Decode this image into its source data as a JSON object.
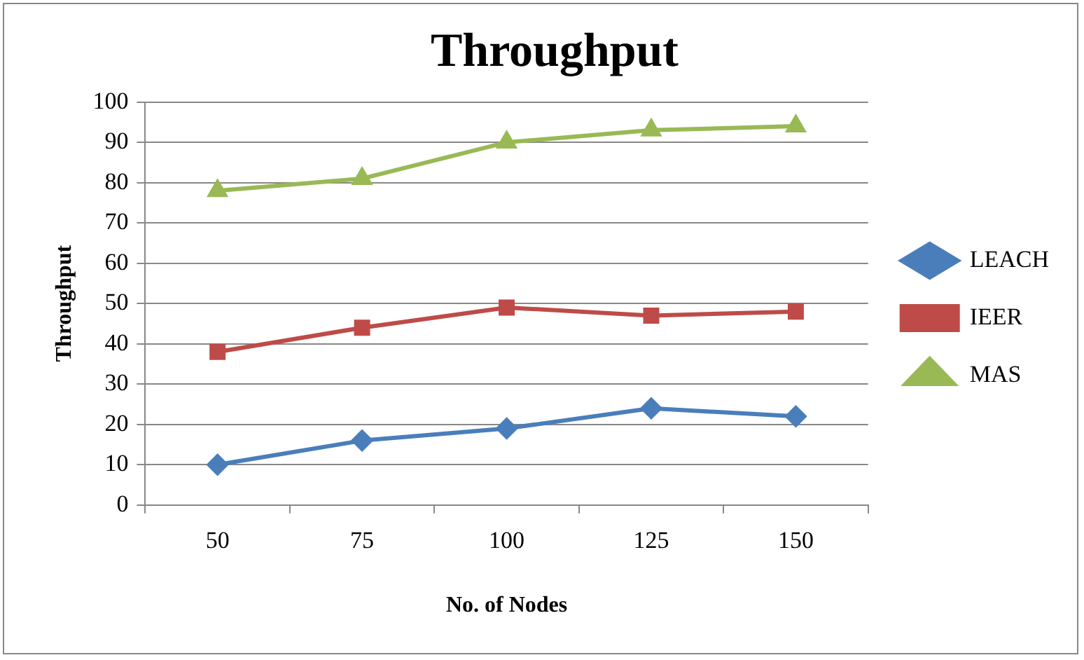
{
  "chart_data": {
    "type": "line",
    "title": "Throughput",
    "xlabel": "No. of Nodes",
    "ylabel": "Throughput",
    "categories": [
      "50",
      "75",
      "100",
      "125",
      "150"
    ],
    "series": [
      {
        "name": "LEACH",
        "color": "#4a7ebb",
        "marker": "diamond",
        "values": [
          10,
          16,
          19,
          24,
          22
        ]
      },
      {
        "name": "IEER",
        "color": "#be4b48",
        "marker": "square",
        "values": [
          38,
          44,
          49,
          47,
          48
        ]
      },
      {
        "name": "MAS",
        "color": "#98b954",
        "marker": "triangle",
        "values": [
          78,
          81,
          90,
          93,
          94
        ]
      }
    ],
    "ylim": [
      0,
      100
    ],
    "yticks": [
      0,
      10,
      20,
      30,
      40,
      50,
      60,
      70,
      80,
      90,
      100
    ],
    "grid": "y",
    "legend": "right",
    "line_style": "solid"
  }
}
